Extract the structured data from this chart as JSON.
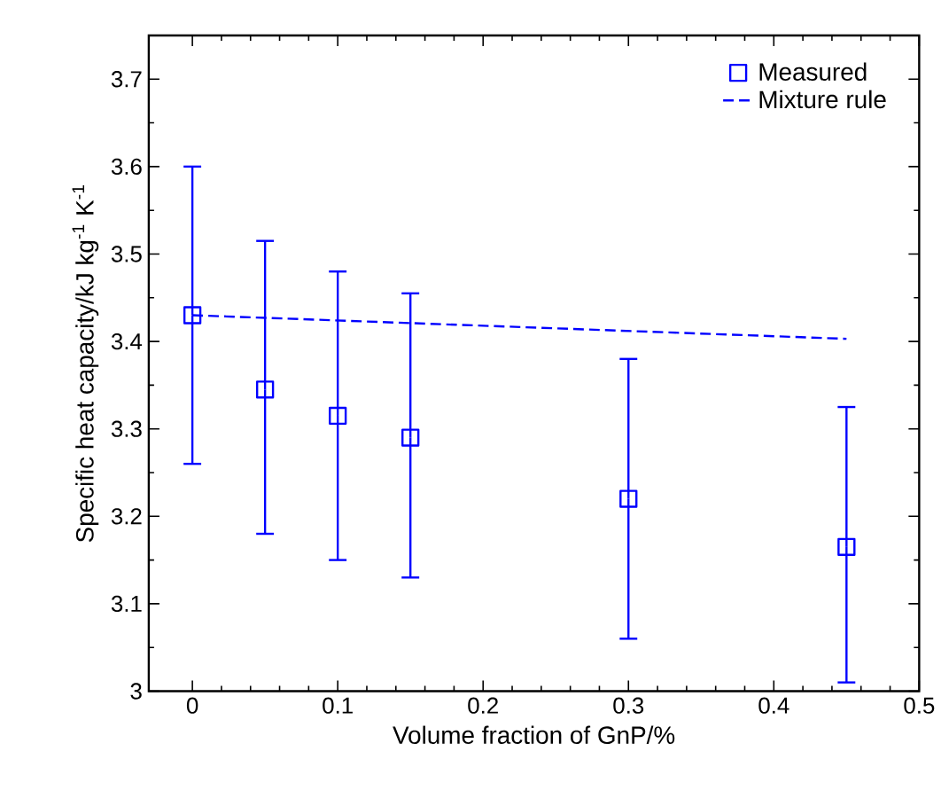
{
  "chart_data": {
    "type": "scatter",
    "xlabel": "Volume fraction of GnP/%",
    "ylabel": "Specific heat capacity/kJ kg$^{-1}$ K$^{-1}$",
    "xlim": [
      -0.03,
      0.5
    ],
    "ylim": [
      3,
      3.75
    ],
    "xticks": [
      0,
      0.1,
      0.2,
      0.3,
      0.4,
      0.5
    ],
    "yticks": [
      3,
      3.1,
      3.2,
      3.3,
      3.4,
      3.5,
      3.6,
      3.7
    ],
    "grid": false,
    "legend": "top right",
    "series": [
      {
        "name": "Measured",
        "color": "#0000ff",
        "marker": "square",
        "x": [
          0,
          0.05,
          0.1,
          0.15,
          0.3,
          0.45
        ],
        "values": [
          3.43,
          3.345,
          3.315,
          3.29,
          3.22,
          3.165
        ],
        "errors": [
          [
            3.26,
            3.6
          ],
          [
            3.18,
            3.515
          ],
          [
            3.15,
            3.48
          ],
          [
            3.13,
            3.455
          ],
          [
            3.06,
            3.38
          ],
          [
            3.01,
            3.325
          ]
        ]
      },
      {
        "name": "Mixture rule",
        "type": "line",
        "color": "#0000ff",
        "marker": "none",
        "line_style": "dashed",
        "x": [
          0,
          0.45
        ],
        "values": [
          3.43,
          3.403
        ]
      }
    ]
  }
}
